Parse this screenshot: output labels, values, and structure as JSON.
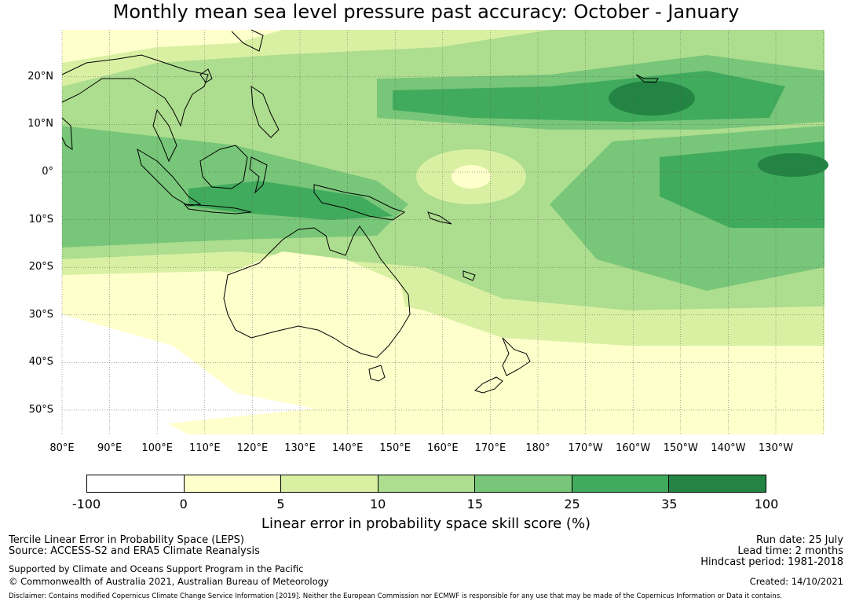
{
  "title": "Monthly mean sea level pressure past accuracy: October - January",
  "map": {
    "lat_labels": [
      "20°N",
      "10°N",
      "0°",
      "10°S",
      "20°S",
      "30°S",
      "40°S",
      "50°S"
    ],
    "lon_labels": [
      "80°E",
      "90°E",
      "100°E",
      "110°E",
      "120°E",
      "130°E",
      "140°E",
      "150°E",
      "160°E",
      "170°E",
      "180°",
      "170°W",
      "160°W",
      "150°W",
      "140°W",
      "130°W"
    ]
  },
  "colorbar": {
    "label": "Linear error in probability space skill score (%)",
    "ticks": [
      "-100",
      "0",
      "5",
      "10",
      "15",
      "25",
      "35",
      "100"
    ],
    "colors": [
      "#ffffff",
      "#ffffcc",
      "#d9f0a3",
      "#addd8e",
      "#78c679",
      "#41ab5d",
      "#238443"
    ]
  },
  "info_left": {
    "line1": "Tercile Linear Error in Probability Space (LEPS)",
    "line2": "Source: ACCESS-S2 and ERA5 Climate Reanalysis",
    "line3": "Supported by Climate and Oceans Support Program in the Pacific",
    "line4": "© Commonwealth of Australia 2021, Australian Bureau of Meteorology"
  },
  "info_right": {
    "run_date": "Run date: 25 July",
    "lead_time": "Lead time: 2 months",
    "hindcast": "Hindcast period: 1981-2018",
    "created": "Created: 14/10/2021"
  },
  "disclaimer": "Disclaimer: Contains modified Copernicus Climate Change Service Information [2019]. Neither the European Commission nor ECMWF is responsible for any use that may be made of the Copernicus Information or Data it contains."
}
